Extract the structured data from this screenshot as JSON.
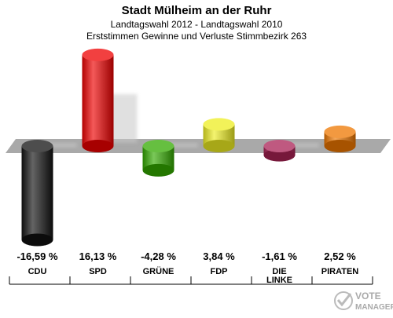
{
  "chart_data": {
    "type": "bar",
    "title": "Stadt Mülheim an der Ruhr",
    "subtitle": "Landtagswahl 2012 - Landtagswahl 2010",
    "subtitle2": "Erststimmen Gewinne und Verluste Stimmbezirk 263",
    "categories": [
      "CDU",
      "SPD",
      "GRÜNE",
      "FDP",
      "DIE\nLINKE",
      "PIRATEN"
    ],
    "values": [
      -16.59,
      16.13,
      -4.28,
      3.84,
      -1.61,
      2.52
    ],
    "value_labels": [
      "-16,59 %",
      "16,13 %",
      "-4,28 %",
      "3,84 %",
      "-1,61 %",
      "2,52 %"
    ],
    "colors": [
      "#111111",
      "#ee0000",
      "#33aa00",
      "#eeee22",
      "#aa2255",
      "#ee7700"
    ],
    "ylim": [
      -17,
      17
    ],
    "grid": false,
    "legend": "none"
  },
  "watermark": {
    "line1": "VOTE",
    "line2": "MANAGER"
  }
}
